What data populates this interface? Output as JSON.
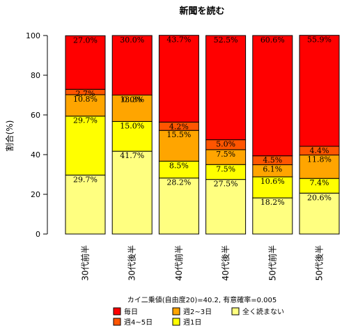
{
  "chart_data": {
    "type": "bar",
    "stacked": true,
    "title": "新聞を読む",
    "xlabel": "",
    "ylabel": "割合(%)",
    "ylim": [
      0,
      100
    ],
    "yticks": [
      "0",
      "20",
      "40",
      "60",
      "80",
      "100"
    ],
    "grid": false,
    "legend_position": "bottom",
    "categories": [
      "30代前半",
      "30代後半",
      "40代前半",
      "40代後半",
      "50代前半",
      "50代後半"
    ],
    "series": [
      {
        "name": "全く読まない",
        "color": "#ffff80",
        "values": [
          29.7,
          41.7,
          28.2,
          27.5,
          18.2,
          20.6
        ],
        "labels": [
          "29.7%",
          "41.7%",
          "28.2%",
          "27.5%",
          "18.2%",
          "20.6%"
        ]
      },
      {
        "name": "週1日",
        "color": "#ffff00",
        "values": [
          29.7,
          15.0,
          8.5,
          7.5,
          10.6,
          7.4
        ],
        "labels": [
          "29.7%",
          "15.0%",
          "8.5%",
          "7.5%",
          "10.6%",
          "7.4%"
        ]
      },
      {
        "name": "週2~3日",
        "color": "#ffa500",
        "values": [
          10.8,
          13.3,
          15.5,
          7.5,
          6.1,
          11.8
        ],
        "labels": [
          "10.8%",
          "13.3%",
          "15.5%",
          "7.5%",
          "6.1%",
          "11.8%"
        ]
      },
      {
        "name": "週4~5日",
        "color": "#ff5500",
        "values": [
          2.7,
          0.0,
          4.2,
          5.0,
          4.5,
          4.4
        ],
        "labels": [
          "2.7%",
          "0.0%",
          "4.2%",
          "5.0%",
          "4.5%",
          "4.4%"
        ]
      },
      {
        "name": "毎日",
        "color": "#ff0000",
        "values": [
          27.0,
          30.0,
          43.7,
          52.5,
          60.6,
          55.9
        ],
        "labels": [
          "27.0%",
          "30.0%",
          "43.7%",
          "52.5%",
          "60.6%",
          "55.9%"
        ]
      }
    ],
    "annotation": "カイ二乗値(自由度20)=40.2, 有意確率=0.005"
  },
  "legend": {
    "items": [
      {
        "label": "毎日",
        "color": "#ff0000"
      },
      {
        "label": "週4~5日",
        "color": "#ff5500"
      },
      {
        "label": "週2~3日",
        "color": "#ffa500"
      },
      {
        "label": "週1日",
        "color": "#ffff00"
      },
      {
        "label": "全く読まない",
        "color": "#ffff80"
      }
    ]
  }
}
